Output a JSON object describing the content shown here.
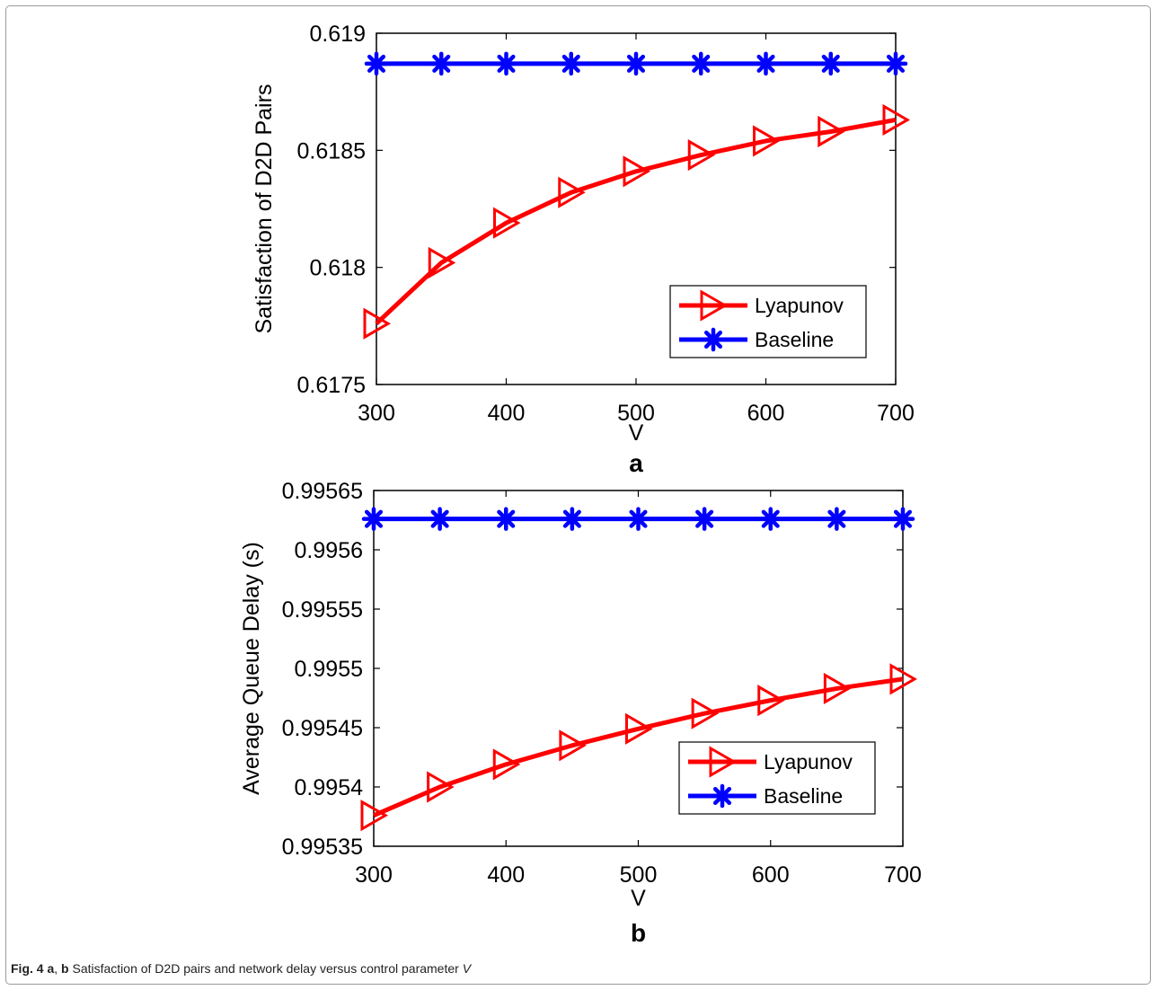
{
  "caption": {
    "fig": "Fig. 4",
    "a": "a",
    "sep": ", ",
    "b": "b",
    "text": " Satisfaction of D2D pairs and network delay versus control parameter ",
    "var": "V"
  },
  "colors": {
    "lyapunov": "#ff0000",
    "baseline": "#0000ff"
  },
  "chart_data": [
    {
      "type": "line",
      "panel_label": "a",
      "xlabel": "V",
      "ylabel": "Satisfaction of D2D Pairs",
      "x": [
        300,
        350,
        400,
        450,
        500,
        550,
        600,
        650,
        700
      ],
      "xlim": [
        300,
        700
      ],
      "ylim": [
        0.6175,
        0.619
      ],
      "xticks": [
        300,
        400,
        500,
        600,
        700
      ],
      "xtick_labels": [
        "300",
        "400",
        "500",
        "600",
        "700"
      ],
      "yticks": [
        0.6175,
        0.618,
        0.6185,
        0.619
      ],
      "ytick_labels": [
        "0.6175",
        "0.618",
        "0.6185",
        "0.619"
      ],
      "legend_position": "bottom-right",
      "grid": false,
      "series": [
        {
          "name": "Lyapunov",
          "marker": "triangle-right",
          "values": [
            0.61776,
            0.61802,
            0.61819,
            0.61832,
            0.61841,
            0.61848,
            0.61854,
            0.61858,
            0.61863
          ]
        },
        {
          "name": "Baseline",
          "marker": "asterisk",
          "values": [
            0.61887,
            0.61887,
            0.61887,
            0.61887,
            0.61887,
            0.61887,
            0.61887,
            0.61887,
            0.61887
          ]
        }
      ]
    },
    {
      "type": "line",
      "panel_label": "b",
      "xlabel": "V",
      "ylabel": "Average Queue Delay (s)",
      "x": [
        300,
        350,
        400,
        450,
        500,
        550,
        600,
        650,
        700
      ],
      "xlim": [
        300,
        700
      ],
      "ylim": [
        0.99535,
        0.99565
      ],
      "xticks": [
        300,
        400,
        500,
        600,
        700
      ],
      "xtick_labels": [
        "300",
        "400",
        "500",
        "600",
        "700"
      ],
      "yticks": [
        0.99535,
        0.9954,
        0.99545,
        0.9955,
        0.99555,
        0.9956,
        0.99565
      ],
      "ytick_labels": [
        "0.99535",
        "0.9954",
        "0.99545",
        "0.9955",
        "0.99555",
        "0.9956",
        "0.99565"
      ],
      "legend_position": "bottom-right",
      "grid": false,
      "series": [
        {
          "name": "Lyapunov",
          "marker": "triangle-right",
          "values": [
            0.995376,
            0.9954,
            0.995419,
            0.995435,
            0.995449,
            0.995462,
            0.995473,
            0.995483,
            0.995491
          ]
        },
        {
          "name": "Baseline",
          "marker": "asterisk",
          "values": [
            0.995626,
            0.995626,
            0.995626,
            0.995626,
            0.995626,
            0.995626,
            0.995626,
            0.995626,
            0.995626
          ]
        }
      ]
    }
  ]
}
